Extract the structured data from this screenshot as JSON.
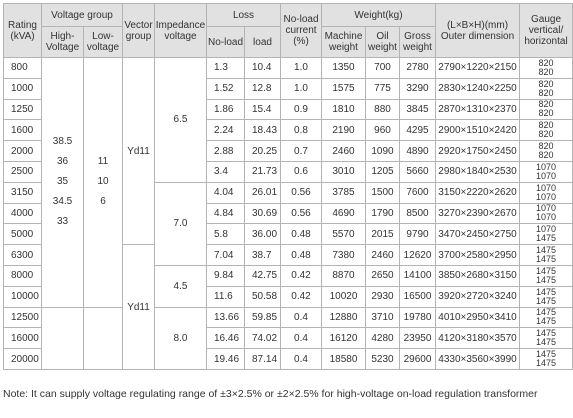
{
  "header": {
    "rating": "Rating (kVA)",
    "voltage_group": "Voltage group",
    "high_voltage": "High-Voltage",
    "low_voltage": "Low-voltage",
    "vector_group": "Vector group",
    "impedance_voltage": "Impedance voltage",
    "loss": "Loss",
    "no_load": "No-load",
    "load": "load",
    "no_load_current": "No-load current (%)",
    "weight": "Weight(kg)",
    "machine_weight": "Machine weight",
    "oil_weight": "Oil weight",
    "gross_weight": "Gross weight",
    "outer_dimension": "(L×B×H)(mm) Outer dimension",
    "gauge": "Gauge vertical/ horizontal"
  },
  "high_voltage_values": [
    "38.5",
    "36",
    "35",
    "34.5",
    "33"
  ],
  "low_voltage_values": [
    "11",
    "10",
    "6"
  ],
  "vector_groups": [
    "Yd11",
    "Yd11"
  ],
  "impedance_values": [
    "6.5",
    "7.0",
    "4.5",
    "8.0"
  ],
  "rows": [
    {
      "rating": "800",
      "no_load": "1.3",
      "load": "10.4",
      "current": "1.0",
      "machine": "1350",
      "oil": "700",
      "gross": "2780",
      "dim": "2790×1220×2150",
      "gauge": [
        "820",
        "820"
      ]
    },
    {
      "rating": "1000",
      "no_load": "1.52",
      "load": "12.8",
      "current": "1.0",
      "machine": "1575",
      "oil": "775",
      "gross": "3290",
      "dim": "2830×1240×2250",
      "gauge": [
        "820",
        "820"
      ]
    },
    {
      "rating": "1250",
      "no_load": "1.86",
      "load": "15.4",
      "current": "0.9",
      "machine": "1810",
      "oil": "880",
      "gross": "3845",
      "dim": "2870×1310×2370",
      "gauge": [
        "820",
        "820"
      ]
    },
    {
      "rating": "1600",
      "no_load": "2.24",
      "load": "18.43",
      "current": "0.8",
      "machine": "2190",
      "oil": "960",
      "gross": "4295",
      "dim": "2900×1510×2420",
      "gauge": [
        "820",
        "820"
      ]
    },
    {
      "rating": "2000",
      "no_load": "2.88",
      "load": "20.25",
      "current": "0.7",
      "machine": "2460",
      "oil": "1090",
      "gross": "4890",
      "dim": "2920×1750×2450",
      "gauge": [
        "820",
        "820"
      ]
    },
    {
      "rating": "2500",
      "no_load": "3.4",
      "load": "21.73",
      "current": "0.6",
      "machine": "3010",
      "oil": "1205",
      "gross": "5660",
      "dim": "2980×1840×2530",
      "gauge": [
        "1070",
        "1070"
      ]
    },
    {
      "rating": "3150",
      "no_load": "4.04",
      "load": "26.01",
      "current": "0.56",
      "machine": "3785",
      "oil": "1500",
      "gross": "7600",
      "dim": "3150×2220×2620",
      "gauge": [
        "1070",
        "1070"
      ]
    },
    {
      "rating": "4000",
      "no_load": "4.84",
      "load": "30.69",
      "current": "0.56",
      "machine": "4690",
      "oil": "1790",
      "gross": "8500",
      "dim": "3270×2390×2670",
      "gauge": [
        "1070",
        "1070"
      ]
    },
    {
      "rating": "5000",
      "no_load": "5.8",
      "load": "36.00",
      "current": "0.48",
      "machine": "5570",
      "oil": "2015",
      "gross": "9790",
      "dim": "3470×2450×2750",
      "gauge": [
        "1070",
        "1475"
      ]
    },
    {
      "rating": "6300",
      "no_load": "7.04",
      "load": "38.7",
      "current": "0.48",
      "machine": "7380",
      "oil": "2460",
      "gross": "12620",
      "dim": "3700×2580×2950",
      "gauge": [
        "1475",
        "1475"
      ]
    },
    {
      "rating": "8000",
      "no_load": "9.84",
      "load": "42.75",
      "current": "0.42",
      "machine": "8870",
      "oil": "2650",
      "gross": "14100",
      "dim": "3850×2680×3150",
      "gauge": [
        "1475",
        "1475"
      ]
    },
    {
      "rating": "10000",
      "no_load": "11.6",
      "load": "50.58",
      "current": "0.42",
      "machine": "10020",
      "oil": "2930",
      "gross": "16500",
      "dim": "3920×2720×3240",
      "gauge": [
        "1475",
        "1475"
      ]
    },
    {
      "rating": "12500",
      "no_load": "13.66",
      "load": "59.85",
      "current": "0.4",
      "machine": "12880",
      "oil": "3710",
      "gross": "19780",
      "dim": "4010×2950×3410",
      "gauge": [
        "1475",
        "1475"
      ]
    },
    {
      "rating": "16000",
      "no_load": "16.46",
      "load": "74.02",
      "current": "0.4",
      "machine": "16120",
      "oil": "4280",
      "gross": "23950",
      "dim": "4120×3180×3570",
      "gauge": [
        "1475",
        "1475"
      ]
    },
    {
      "rating": "20000",
      "no_load": "19.46",
      "load": "87.14",
      "current": "0.4",
      "machine": "18580",
      "oil": "5230",
      "gross": "29600",
      "dim": "4330×3560×3990",
      "gauge": [
        "1475",
        "1475"
      ]
    }
  ],
  "note": "Note: It can supply voltage regulating range of ±3×2.5% or ±2×2.5% for high-voltage  on-load regulation transformer",
  "colors": {
    "header_bg": "#e1e1e1",
    "border": "#b4b4b4",
    "text": "#333333"
  }
}
